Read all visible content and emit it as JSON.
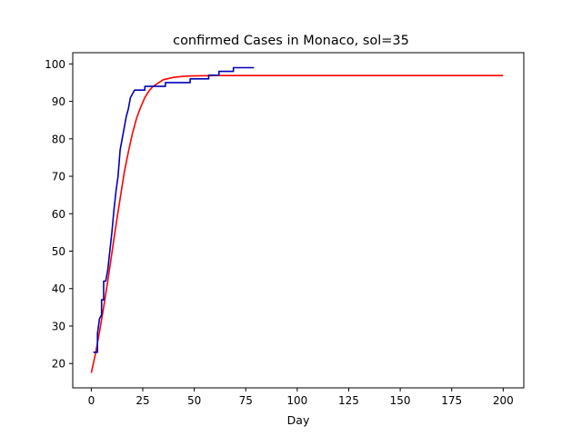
{
  "chart_data": {
    "type": "line",
    "title": "confirmed Cases in Monaco, sol=35",
    "xlabel": "Day",
    "ylabel": "",
    "xlim": [
      -9,
      210
    ],
    "ylim": [
      13.5,
      103
    ],
    "xticks": [
      0,
      25,
      50,
      75,
      100,
      125,
      150,
      175,
      200
    ],
    "yticks": [
      20,
      30,
      40,
      50,
      60,
      70,
      80,
      90,
      100
    ],
    "grid": false,
    "legend": "none",
    "series": [
      {
        "color": "#ff0000",
        "style": "smooth-fit",
        "x": [
          0,
          2,
          4,
          6,
          8,
          10,
          12,
          14,
          16,
          18,
          20,
          22,
          24,
          26,
          28,
          30,
          35,
          40,
          45,
          50,
          60,
          80,
          100,
          150,
          200
        ],
        "y": [
          17.5,
          22.5,
          28.5,
          35,
          42,
          49.5,
          57,
          64,
          71,
          76.5,
          81.5,
          85.5,
          88.5,
          91,
          92.8,
          94,
          95.8,
          96.4,
          96.7,
          96.8,
          96.9,
          96.9,
          96.9,
          96.9,
          96.9
        ]
      },
      {
        "color": "#0000bb",
        "style": "observed",
        "x": [
          1,
          3,
          3,
          4,
          5,
          5,
          6,
          6,
          7,
          8,
          9,
          10,
          11,
          12,
          13,
          14,
          15,
          16,
          17,
          18,
          19,
          20,
          21,
          22,
          26,
          26,
          36,
          36,
          48,
          48,
          57,
          57,
          62,
          62,
          69,
          69,
          79
        ],
        "y": [
          23,
          23,
          28,
          32,
          33,
          37,
          37,
          42,
          42,
          45,
          50,
          55,
          61,
          66,
          70,
          77,
          80,
          83,
          86,
          88,
          91,
          92,
          93,
          93,
          93,
          94,
          94,
          95,
          95,
          96,
          96,
          97,
          97,
          98,
          98,
          99,
          99
        ]
      }
    ]
  }
}
